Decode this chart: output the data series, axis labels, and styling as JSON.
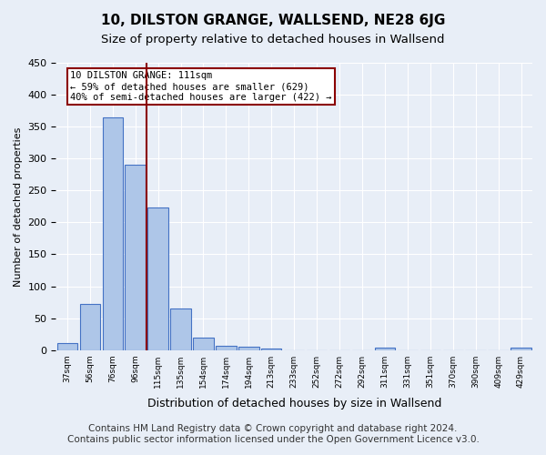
{
  "title": "10, DILSTON GRANGE, WALLSEND, NE28 6JG",
  "subtitle": "Size of property relative to detached houses in Wallsend",
  "xlabel": "Distribution of detached houses by size in Wallsend",
  "ylabel": "Number of detached properties",
  "bar_labels": [
    "37sqm",
    "56sqm",
    "76sqm",
    "96sqm",
    "115sqm",
    "135sqm",
    "154sqm",
    "174sqm",
    "194sqm",
    "213sqm",
    "233sqm",
    "252sqm",
    "272sqm",
    "292sqm",
    "311sqm",
    "331sqm",
    "351sqm",
    "370sqm",
    "390sqm",
    "409sqm",
    "429sqm"
  ],
  "bar_values": [
    11,
    72,
    364,
    291,
    224,
    65,
    20,
    7,
    5,
    2,
    0,
    0,
    0,
    0,
    4,
    0,
    0,
    0,
    0,
    0,
    4
  ],
  "bar_color": "#aec6e8",
  "bar_edge_color": "#4472c4",
  "vline_x": 4,
  "vline_color": "#8b0000",
  "annotation_title": "10 DILSTON GRANGE: 111sqm",
  "annotation_line2": "← 59% of detached houses are smaller (629)",
  "annotation_line3": "40% of semi-detached houses are larger (422) →",
  "annotation_box_color": "#8b0000",
  "annotation_fill": "white",
  "ylim": [
    0,
    450
  ],
  "yticks": [
    0,
    50,
    100,
    150,
    200,
    250,
    300,
    350,
    400,
    450
  ],
  "footer_line1": "Contains HM Land Registry data © Crown copyright and database right 2024.",
  "footer_line2": "Contains public sector information licensed under the Open Government Licence v3.0.",
  "background_color": "#e8eef7",
  "plot_bg_color": "#e8eef7",
  "grid_color": "white",
  "title_fontsize": 11,
  "subtitle_fontsize": 9.5,
  "footer_fontsize": 7.5
}
